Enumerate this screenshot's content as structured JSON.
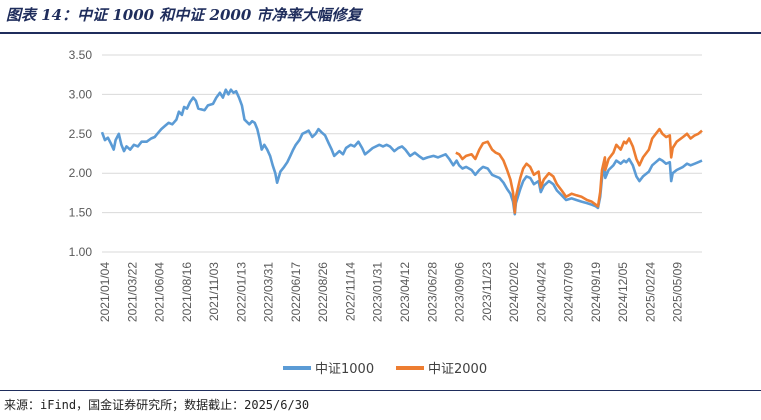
{
  "header": {
    "title": "图表 14：中证 1000 和中证 2000 市净率大幅修复"
  },
  "footer": {
    "source": "来源：iFind，国金证券研究所；数据截止：2025/6/30"
  },
  "chart_data": {
    "type": "line",
    "title": "",
    "xlabel": "",
    "ylabel": "",
    "ylim": [
      1.0,
      3.5
    ],
    "yticks": [
      "1.00",
      "1.50",
      "2.00",
      "2.50",
      "3.00",
      "3.50"
    ],
    "x_tick_labels": [
      "2021/01/04",
      "2021/03/22",
      "2021/06/04",
      "2021/08/16",
      "2021/11/03",
      "2022/01/13",
      "2022/03/31",
      "2022/06/17",
      "2022/08/26",
      "2022/11/14",
      "2023/01/31",
      "2023/04/12",
      "2023/06/28",
      "2023/09/06",
      "2023/11/23",
      "2024/02/02",
      "2024/04/24",
      "2024/07/09",
      "2024/09/19",
      "2024/12/05",
      "2025/02/24",
      "2025/05/09"
    ],
    "grid": "horizontal",
    "legend_position": "bottom",
    "colors": {
      "csi1000": "#5b9bd5",
      "csi2000": "#ed7d31"
    },
    "series": [
      {
        "name": "中证1000",
        "color": "#5b9bd5",
        "points": [
          [
            "2021-01-04",
            2.52
          ],
          [
            "2021-01-12",
            2.42
          ],
          [
            "2021-01-20",
            2.45
          ],
          [
            "2021-01-28",
            2.38
          ],
          [
            "2021-02-05",
            2.3
          ],
          [
            "2021-02-10",
            2.42
          ],
          [
            "2021-02-19",
            2.5
          ],
          [
            "2021-02-26",
            2.36
          ],
          [
            "2021-03-05",
            2.28
          ],
          [
            "2021-03-12",
            2.34
          ],
          [
            "2021-03-22",
            2.3
          ],
          [
            "2021-04-01",
            2.36
          ],
          [
            "2021-04-12",
            2.34
          ],
          [
            "2021-04-22",
            2.4
          ],
          [
            "2021-05-06",
            2.4
          ],
          [
            "2021-05-18",
            2.44
          ],
          [
            "2021-05-28",
            2.46
          ],
          [
            "2021-06-04",
            2.5
          ],
          [
            "2021-06-15",
            2.56
          ],
          [
            "2021-06-25",
            2.6
          ],
          [
            "2021-07-05",
            2.64
          ],
          [
            "2021-07-15",
            2.62
          ],
          [
            "2021-07-26",
            2.68
          ],
          [
            "2021-08-02",
            2.78
          ],
          [
            "2021-08-10",
            2.74
          ],
          [
            "2021-08-16",
            2.84
          ],
          [
            "2021-08-24",
            2.82
          ],
          [
            "2021-09-01",
            2.9
          ],
          [
            "2021-09-10",
            2.96
          ],
          [
            "2021-09-17",
            2.92
          ],
          [
            "2021-09-24",
            2.82
          ],
          [
            "2021-10-11",
            2.8
          ],
          [
            "2021-10-20",
            2.86
          ],
          [
            "2021-11-03",
            2.88
          ],
          [
            "2021-11-12",
            2.96
          ],
          [
            "2021-11-22",
            3.02
          ],
          [
            "2021-11-30",
            2.96
          ],
          [
            "2021-12-08",
            3.06
          ],
          [
            "2021-12-15",
            3.0
          ],
          [
            "2021-12-22",
            3.06
          ],
          [
            "2021-12-29",
            3.02
          ],
          [
            "2022-01-05",
            3.04
          ],
          [
            "2022-01-13",
            2.96
          ],
          [
            "2022-01-21",
            2.86
          ],
          [
            "2022-01-28",
            2.68
          ],
          [
            "2022-02-10",
            2.62
          ],
          [
            "2022-02-18",
            2.66
          ],
          [
            "2022-02-25",
            2.64
          ],
          [
            "2022-03-04",
            2.56
          ],
          [
            "2022-03-10",
            2.44
          ],
          [
            "2022-03-16",
            2.3
          ],
          [
            "2022-03-23",
            2.36
          ],
          [
            "2022-03-31",
            2.3
          ],
          [
            "2022-04-08",
            2.22
          ],
          [
            "2022-04-15",
            2.1
          ],
          [
            "2022-04-22",
            2.0
          ],
          [
            "2022-04-27",
            1.88
          ],
          [
            "2022-05-06",
            2.02
          ],
          [
            "2022-05-16",
            2.08
          ],
          [
            "2022-05-25",
            2.14
          ],
          [
            "2022-06-02",
            2.22
          ],
          [
            "2022-06-10",
            2.3
          ],
          [
            "2022-06-17",
            2.36
          ],
          [
            "2022-06-27",
            2.42
          ],
          [
            "2022-07-05",
            2.5
          ],
          [
            "2022-07-14",
            2.52
          ],
          [
            "2022-07-22",
            2.54
          ],
          [
            "2022-08-01",
            2.46
          ],
          [
            "2022-08-10",
            2.5
          ],
          [
            "2022-08-18",
            2.56
          ],
          [
            "2022-08-26",
            2.52
          ],
          [
            "2022-09-05",
            2.48
          ],
          [
            "2022-09-15",
            2.38
          ],
          [
            "2022-09-23",
            2.3
          ],
          [
            "2022-09-30",
            2.22
          ],
          [
            "2022-10-14",
            2.28
          ],
          [
            "2022-10-24",
            2.24
          ],
          [
            "2022-11-01",
            2.32
          ],
          [
            "2022-11-14",
            2.36
          ],
          [
            "2022-11-24",
            2.34
          ],
          [
            "2022-12-05",
            2.4
          ],
          [
            "2022-12-15",
            2.32
          ],
          [
            "2022-12-23",
            2.24
          ],
          [
            "2023-01-03",
            2.28
          ],
          [
            "2023-01-13",
            2.32
          ],
          [
            "2023-01-31",
            2.36
          ],
          [
            "2023-02-10",
            2.34
          ],
          [
            "2023-02-20",
            2.36
          ],
          [
            "2023-03-01",
            2.34
          ],
          [
            "2023-03-13",
            2.28
          ],
          [
            "2023-03-24",
            2.32
          ],
          [
            "2023-04-03",
            2.34
          ],
          [
            "2023-04-12",
            2.3
          ],
          [
            "2023-04-25",
            2.22
          ],
          [
            "2023-05-08",
            2.26
          ],
          [
            "2023-05-19",
            2.22
          ],
          [
            "2023-05-31",
            2.18
          ],
          [
            "2023-06-12",
            2.2
          ],
          [
            "2023-06-28",
            2.22
          ],
          [
            "2023-07-10",
            2.2
          ],
          [
            "2023-07-20",
            2.22
          ],
          [
            "2023-07-31",
            2.24
          ],
          [
            "2023-08-10",
            2.18
          ],
          [
            "2023-08-21",
            2.1
          ],
          [
            "2023-08-30",
            2.16
          ],
          [
            "2023-09-06",
            2.1
          ],
          [
            "2023-09-15",
            2.06
          ],
          [
            "2023-09-25",
            2.08
          ],
          [
            "2023-10-10",
            2.04
          ],
          [
            "2023-10-20",
            1.98
          ],
          [
            "2023-10-31",
            2.04
          ],
          [
            "2023-11-10",
            2.08
          ],
          [
            "2023-11-23",
            2.06
          ],
          [
            "2023-12-05",
            1.98
          ],
          [
            "2023-12-15",
            1.96
          ],
          [
            "2023-12-25",
            1.94
          ],
          [
            "2024-01-05",
            1.88
          ],
          [
            "2024-01-15",
            1.8
          ],
          [
            "2024-01-24",
            1.74
          ],
          [
            "2024-01-31",
            1.64
          ],
          [
            "2024-02-05",
            1.48
          ],
          [
            "2024-02-08",
            1.62
          ],
          [
            "2024-02-20",
            1.8
          ],
          [
            "2024-02-28",
            1.9
          ],
          [
            "2024-03-08",
            1.96
          ],
          [
            "2024-03-18",
            1.94
          ],
          [
            "2024-03-28",
            1.86
          ],
          [
            "2024-04-10",
            1.9
          ],
          [
            "2024-04-16",
            1.76
          ],
          [
            "2024-04-24",
            1.84
          ],
          [
            "2024-05-08",
            1.9
          ],
          [
            "2024-05-20",
            1.86
          ],
          [
            "2024-05-30",
            1.78
          ],
          [
            "2024-06-12",
            1.72
          ],
          [
            "2024-06-24",
            1.66
          ],
          [
            "2024-07-09",
            1.68
          ],
          [
            "2024-07-22",
            1.66
          ],
          [
            "2024-08-05",
            1.64
          ],
          [
            "2024-08-20",
            1.62
          ],
          [
            "2024-09-02",
            1.6
          ],
          [
            "2024-09-13",
            1.58
          ],
          [
            "2024-09-19",
            1.56
          ],
          [
            "2024-09-25",
            1.7
          ],
          [
            "2024-09-30",
            1.94
          ],
          [
            "2024-10-08",
            2.08
          ],
          [
            "2024-10-09",
            1.94
          ],
          [
            "2024-10-18",
            2.04
          ],
          [
            "2024-10-31",
            2.1
          ],
          [
            "2024-11-08",
            2.16
          ],
          [
            "2024-11-20",
            2.12
          ],
          [
            "2024-11-29",
            2.16
          ],
          [
            "2024-12-05",
            2.14
          ],
          [
            "2024-12-13",
            2.18
          ],
          [
            "2024-12-23",
            2.1
          ],
          [
            "2025-01-02",
            1.96
          ],
          [
            "2025-01-10",
            1.9
          ],
          [
            "2025-01-20",
            1.96
          ],
          [
            "2025-02-05",
            2.02
          ],
          [
            "2025-02-14",
            2.1
          ],
          [
            "2025-02-24",
            2.14
          ],
          [
            "2025-03-06",
            2.18
          ],
          [
            "2025-03-14",
            2.16
          ],
          [
            "2025-03-24",
            2.12
          ],
          [
            "2025-04-03",
            2.14
          ],
          [
            "2025-04-07",
            1.9
          ],
          [
            "2025-04-11",
            2.0
          ],
          [
            "2025-04-22",
            2.04
          ],
          [
            "2025-05-09",
            2.08
          ],
          [
            "2025-05-20",
            2.12
          ],
          [
            "2025-05-30",
            2.1
          ],
          [
            "2025-06-10",
            2.12
          ],
          [
            "2025-06-20",
            2.14
          ],
          [
            "2025-06-30",
            2.16
          ]
        ]
      },
      {
        "name": "中证2000",
        "color": "#ed7d31",
        "points": [
          [
            "2023-08-28",
            2.26
          ],
          [
            "2023-09-06",
            2.24
          ],
          [
            "2023-09-15",
            2.18
          ],
          [
            "2023-09-25",
            2.22
          ],
          [
            "2023-10-10",
            2.24
          ],
          [
            "2023-10-20",
            2.18
          ],
          [
            "2023-10-31",
            2.3
          ],
          [
            "2023-11-10",
            2.38
          ],
          [
            "2023-11-23",
            2.4
          ],
          [
            "2023-12-05",
            2.3
          ],
          [
            "2023-12-15",
            2.26
          ],
          [
            "2023-12-25",
            2.24
          ],
          [
            "2024-01-05",
            2.16
          ],
          [
            "2024-01-15",
            2.04
          ],
          [
            "2024-01-24",
            1.92
          ],
          [
            "2024-01-31",
            1.76
          ],
          [
            "2024-02-05",
            1.5
          ],
          [
            "2024-02-08",
            1.7
          ],
          [
            "2024-02-20",
            1.94
          ],
          [
            "2024-02-28",
            2.06
          ],
          [
            "2024-03-08",
            2.12
          ],
          [
            "2024-03-18",
            2.08
          ],
          [
            "2024-03-28",
            1.98
          ],
          [
            "2024-04-10",
            2.02
          ],
          [
            "2024-04-16",
            1.82
          ],
          [
            "2024-04-24",
            1.92
          ],
          [
            "2024-05-08",
            2.0
          ],
          [
            "2024-05-20",
            1.96
          ],
          [
            "2024-05-30",
            1.86
          ],
          [
            "2024-06-12",
            1.78
          ],
          [
            "2024-06-24",
            1.7
          ],
          [
            "2024-07-09",
            1.74
          ],
          [
            "2024-07-22",
            1.72
          ],
          [
            "2024-08-05",
            1.7
          ],
          [
            "2024-08-20",
            1.66
          ],
          [
            "2024-09-02",
            1.64
          ],
          [
            "2024-09-13",
            1.6
          ],
          [
            "2024-09-19",
            1.58
          ],
          [
            "2024-09-25",
            1.76
          ],
          [
            "2024-09-30",
            2.04
          ],
          [
            "2024-10-08",
            2.2
          ],
          [
            "2024-10-09",
            2.04
          ],
          [
            "2024-10-18",
            2.18
          ],
          [
            "2024-10-31",
            2.26
          ],
          [
            "2024-11-08",
            2.36
          ],
          [
            "2024-11-20",
            2.3
          ],
          [
            "2024-11-29",
            2.4
          ],
          [
            "2024-12-05",
            2.38
          ],
          [
            "2024-12-13",
            2.44
          ],
          [
            "2024-12-23",
            2.34
          ],
          [
            "2025-01-02",
            2.18
          ],
          [
            "2025-01-10",
            2.1
          ],
          [
            "2025-01-20",
            2.2
          ],
          [
            "2025-02-05",
            2.3
          ],
          [
            "2025-02-14",
            2.44
          ],
          [
            "2025-02-24",
            2.5
          ],
          [
            "2025-03-06",
            2.56
          ],
          [
            "2025-03-14",
            2.5
          ],
          [
            "2025-03-24",
            2.46
          ],
          [
            "2025-04-03",
            2.48
          ],
          [
            "2025-04-07",
            2.2
          ],
          [
            "2025-04-11",
            2.32
          ],
          [
            "2025-04-22",
            2.4
          ],
          [
            "2025-05-09",
            2.46
          ],
          [
            "2025-05-20",
            2.5
          ],
          [
            "2025-05-30",
            2.44
          ],
          [
            "2025-06-10",
            2.48
          ],
          [
            "2025-06-20",
            2.5
          ],
          [
            "2025-06-30",
            2.54
          ]
        ]
      }
    ]
  }
}
